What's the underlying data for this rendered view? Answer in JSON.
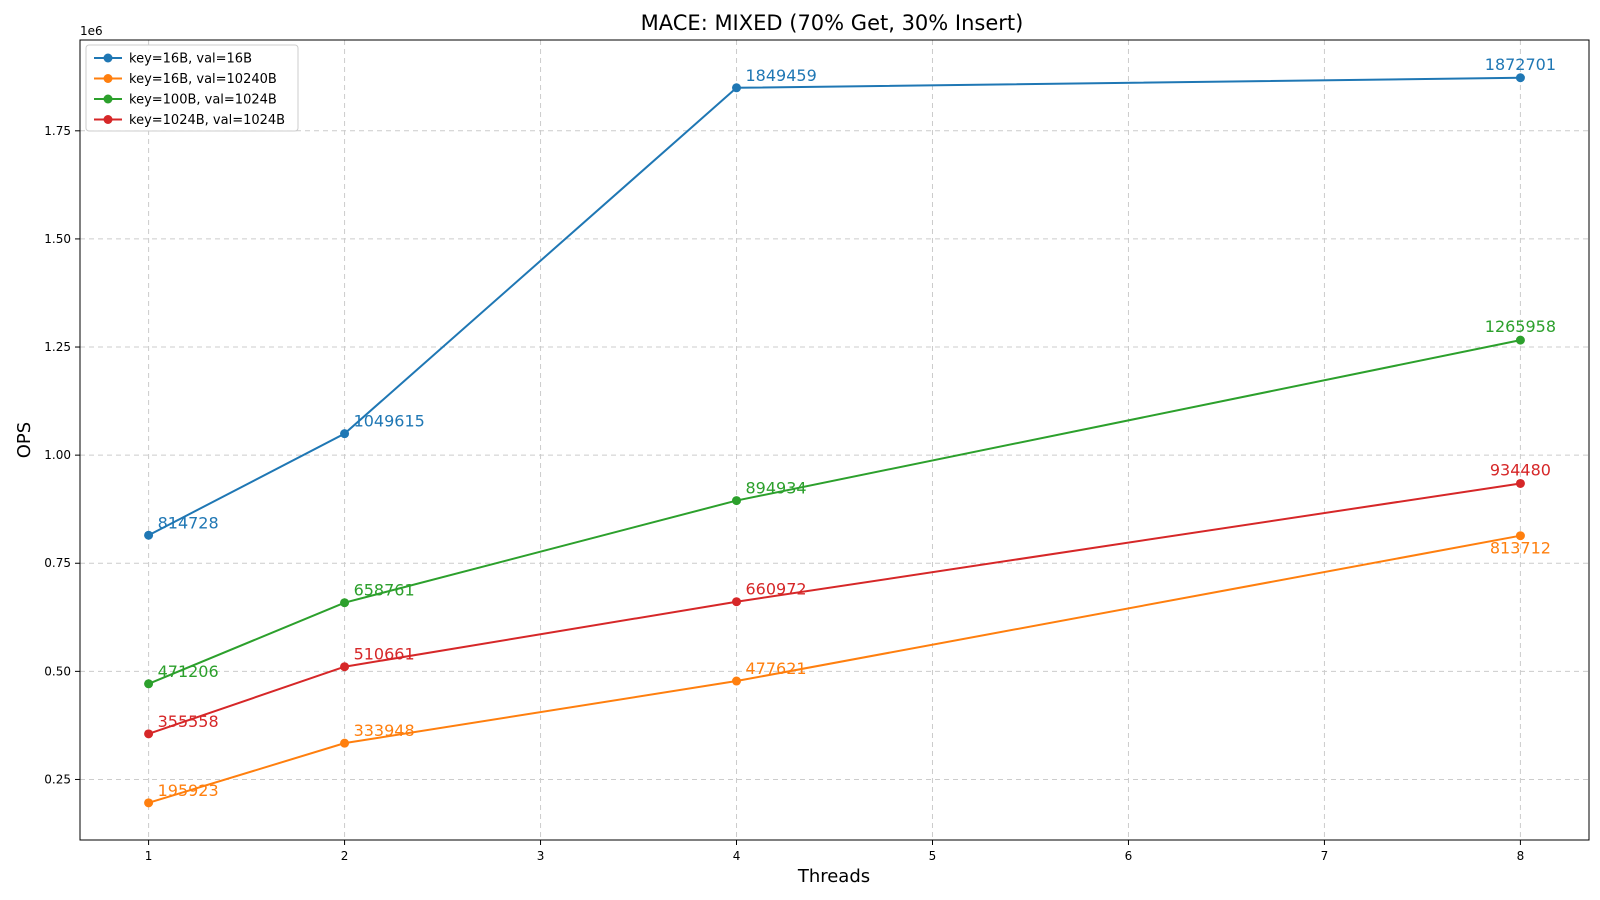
{
  "chart_data": {
    "type": "line",
    "title": "MACE: MIXED (70% Get, 30% Insert)",
    "xlabel": "Threads",
    "ylabel": "OPS",
    "y_multiplier_label": "1e6",
    "x": [
      1,
      2,
      4,
      8
    ],
    "xlim": [
      0.65,
      8.35
    ],
    "ylim": [
      110000,
      1960000
    ],
    "xticks": [
      1,
      2,
      3,
      4,
      5,
      6,
      7,
      8
    ],
    "yticks": [
      250000,
      500000,
      750000,
      1000000,
      1250000,
      1500000,
      1750000
    ],
    "ytick_labels": [
      "0.25",
      "0.50",
      "0.75",
      "1.00",
      "1.25",
      "1.50",
      "1.75"
    ],
    "grid": true,
    "legend_position": "top-left",
    "series": [
      {
        "name": "key=16B, val=16B",
        "color": "#1f77b4",
        "values": [
          814728,
          1049615,
          1849459,
          1872701
        ],
        "labels": [
          "814728",
          "1049615",
          "1849459",
          "1872701"
        ]
      },
      {
        "name": "key=16B, val=10240B",
        "color": "#ff7f0e",
        "values": [
          195923,
          333948,
          477621,
          813712
        ],
        "labels": [
          "195923",
          "333948",
          "477621",
          "813712"
        ]
      },
      {
        "name": "key=100B, val=1024B",
        "color": "#2ca02c",
        "values": [
          471206,
          658761,
          894934,
          1265958
        ],
        "labels": [
          "471206",
          "658761",
          "894934",
          "1265958"
        ]
      },
      {
        "name": "key=1024B, val=1024B",
        "color": "#d62728",
        "values": [
          355558,
          510661,
          660972,
          934480
        ],
        "labels": [
          "355558",
          "510661",
          "660972",
          "934480"
        ]
      }
    ]
  }
}
